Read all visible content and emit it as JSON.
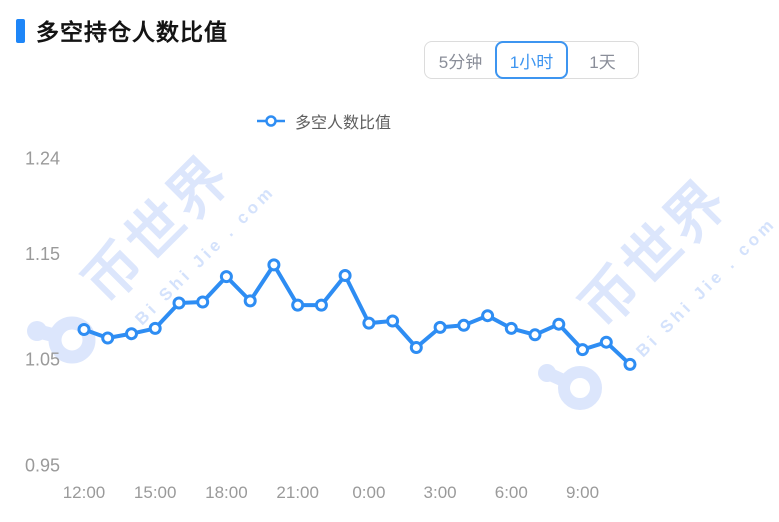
{
  "header": {
    "title": "多空持仓人数比值"
  },
  "period_tabs": {
    "items": [
      {
        "label": "5分钟",
        "selected": false
      },
      {
        "label": "1小时",
        "selected": true
      },
      {
        "label": "1天",
        "selected": false
      }
    ]
  },
  "legend": {
    "series_label": "多空人数比值"
  },
  "watermark": {
    "cjk": "币世界",
    "latin": "Bi Shi Jie . com"
  },
  "colors": {
    "accent": "#1E86F8",
    "tab_active": "#3D95F0",
    "line": "#2E8DF3",
    "axis_text": "#9A9A9A",
    "watermark": "#DCE6FC"
  },
  "chart_data": {
    "type": "line",
    "title": "多空持仓人数比值",
    "series": [
      {
        "name": "多空人数比值",
        "values": [
          1.078,
          1.07,
          1.074,
          1.079,
          1.103,
          1.104,
          1.128,
          1.105,
          1.139,
          1.101,
          1.101,
          1.129,
          1.084,
          1.086,
          1.061,
          1.08,
          1.082,
          1.091,
          1.079,
          1.073,
          1.083,
          1.059,
          1.066,
          1.045
        ]
      }
    ],
    "x": [
      "12:00",
      "13:00",
      "14:00",
      "15:00",
      "16:00",
      "17:00",
      "18:00",
      "19:00",
      "20:00",
      "21:00",
      "22:00",
      "23:00",
      "0:00",
      "1:00",
      "2:00",
      "3:00",
      "4:00",
      "5:00",
      "6:00",
      "7:00",
      "8:00",
      "9:00",
      "10:00",
      "11:00"
    ],
    "x_tick_labels": [
      "12:00",
      "15:00",
      "18:00",
      "21:00",
      "0:00",
      "3:00",
      "6:00",
      "9:00"
    ],
    "x_tick_indices": [
      0,
      3,
      6,
      9,
      12,
      15,
      18,
      21
    ],
    "y_tick_labels": [
      "1.24",
      "1.15",
      "1.05",
      "0.95"
    ],
    "y_tick_values": [
      1.24,
      1.15,
      1.05,
      0.95
    ],
    "ylim": [
      0.95,
      1.24
    ],
    "grid": false,
    "legend_position": "top-center",
    "marker": "circle-hollow"
  }
}
